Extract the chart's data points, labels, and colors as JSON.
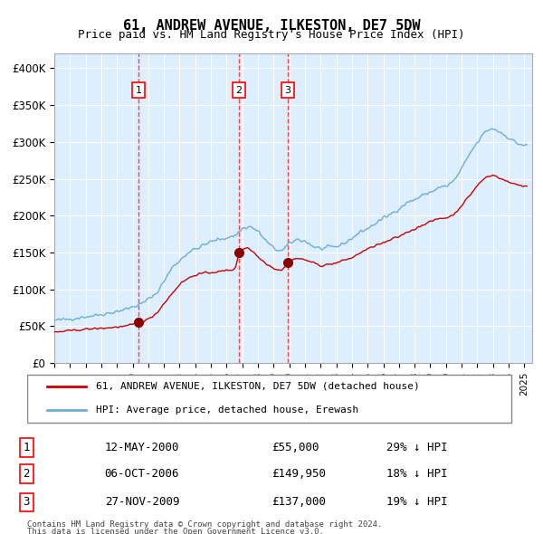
{
  "title": "61, ANDREW AVENUE, ILKESTON, DE7 5DW",
  "subtitle": "Price paid vs. HM Land Registry's House Price Index (HPI)",
  "legend_line1": "61, ANDREW AVENUE, ILKESTON, DE7 5DW (detached house)",
  "legend_line2": "HPI: Average price, detached house, Erewash",
  "footer_line1": "Contains HM Land Registry data © Crown copyright and database right 2024.",
  "footer_line2": "This data is licensed under the Open Government Licence v3.0.",
  "transactions": [
    {
      "num": 1,
      "date": "2000-05-12",
      "price": 55000,
      "hpi_pct": "29% ↓ HPI"
    },
    {
      "num": 2,
      "date": "2006-10-06",
      "price": 149950,
      "hpi_pct": "18% ↓ HPI"
    },
    {
      "num": 3,
      "date": "2009-11-27",
      "price": 137000,
      "hpi_pct": "19% ↓ HPI"
    }
  ],
  "transaction_display": [
    {
      "num": 1,
      "date_str": "12-MAY-2000",
      "price_str": "£55,000",
      "hpi_str": "29% ↓ HPI"
    },
    {
      "num": 2,
      "date_str": "06-OCT-2006",
      "price_str": "£149,950",
      "hpi_str": "18% ↓ HPI"
    },
    {
      "num": 3,
      "date_str": "27-NOV-2009",
      "price_str": "£137,000",
      "hpi_str": "19% ↓ HPI"
    }
  ],
  "hpi_color": "#6baed6",
  "price_color": "#cc0000",
  "vline_color": "#ff4444",
  "marker_color": "#8b0000",
  "background_color": "#ddeeff",
  "grid_color": "#ffffff",
  "ylim": [
    0,
    420000
  ],
  "yticks": [
    0,
    50000,
    100000,
    150000,
    200000,
    250000,
    300000,
    350000,
    400000
  ],
  "ytick_labels": [
    "£0",
    "£50K",
    "£100K",
    "£150K",
    "£200K",
    "£250K",
    "£300K",
    "£350K",
    "£400K"
  ],
  "xstart": 1995.0,
  "xend": 2025.5
}
